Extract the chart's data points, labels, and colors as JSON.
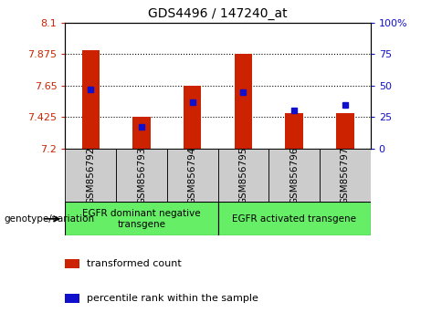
{
  "title": "GDS4496 / 147240_at",
  "categories": [
    "GSM856792",
    "GSM856793",
    "GSM856794",
    "GSM856795",
    "GSM856796",
    "GSM856797"
  ],
  "bar_values": [
    7.9,
    7.425,
    7.65,
    7.875,
    7.45,
    7.45
  ],
  "blue_values": [
    47,
    17,
    37,
    45,
    30,
    35
  ],
  "ylim_left": [
    7.2,
    8.1
  ],
  "ylim_right": [
    0,
    100
  ],
  "yticks_left": [
    7.2,
    7.425,
    7.65,
    7.875,
    8.1
  ],
  "yticks_right": [
    0,
    25,
    50,
    75,
    100
  ],
  "bar_color": "#cc2200",
  "blue_color": "#1010cc",
  "group1_label": "EGFR dominant negative\ntransgene",
  "group2_label": "EGFR activated transgene",
  "legend_red_label": "transformed count",
  "legend_blue_label": "percentile rank within the sample",
  "genotype_label": "genotype/variation",
  "plot_bg": "#e8e8e8",
  "xtick_bg": "#cccccc",
  "group_bg": "#66ee66",
  "bar_width": 0.35
}
